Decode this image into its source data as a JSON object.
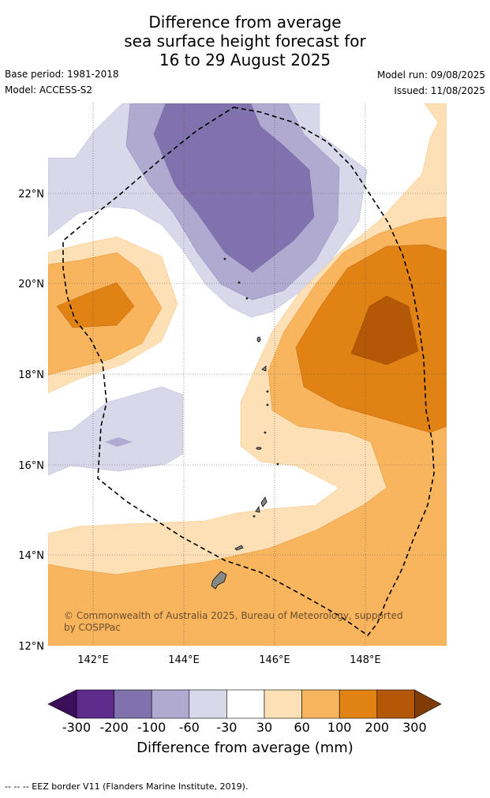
{
  "title": {
    "line1": "Difference from average",
    "line2": "sea surface height forecast for",
    "line3": "16 to 29 August 2025"
  },
  "meta": {
    "base_period": "Base period: 1981-2018",
    "model": "Model: ACCESS-S2",
    "model_run": "Model run: 09/08/2025",
    "issued": "Issued: 11/08/2025"
  },
  "map": {
    "latitude_labels": [
      "22°N",
      "20°N",
      "18°N",
      "16°N",
      "14°N",
      "12°N"
    ],
    "longitude_labels": [
      "142°E",
      "144°E",
      "146°E",
      "148°E"
    ],
    "copyright_line1": "© Commonwealth of Australia 2025, Bureau of Meteorology, supported",
    "copyright_line2": "by COSPPac"
  },
  "colorbar": {
    "ticks": [
      "-300",
      "-200",
      "-100",
      "-60",
      "-30",
      "30",
      "60",
      "100",
      "200",
      "300"
    ],
    "colors": [
      "#3b0f5a",
      "#5e2a8c",
      "#8073ad",
      "#b0a9d0",
      "#d9d8ea",
      "#ffffff",
      "#fde0b5",
      "#f9b55e",
      "#e08214",
      "#b35806",
      "#7f3b08"
    ],
    "title": "Difference from average (mm)"
  },
  "footer": "--  --  -- EEZ border V11 (Flanders Marine Institute, 2019)."
}
